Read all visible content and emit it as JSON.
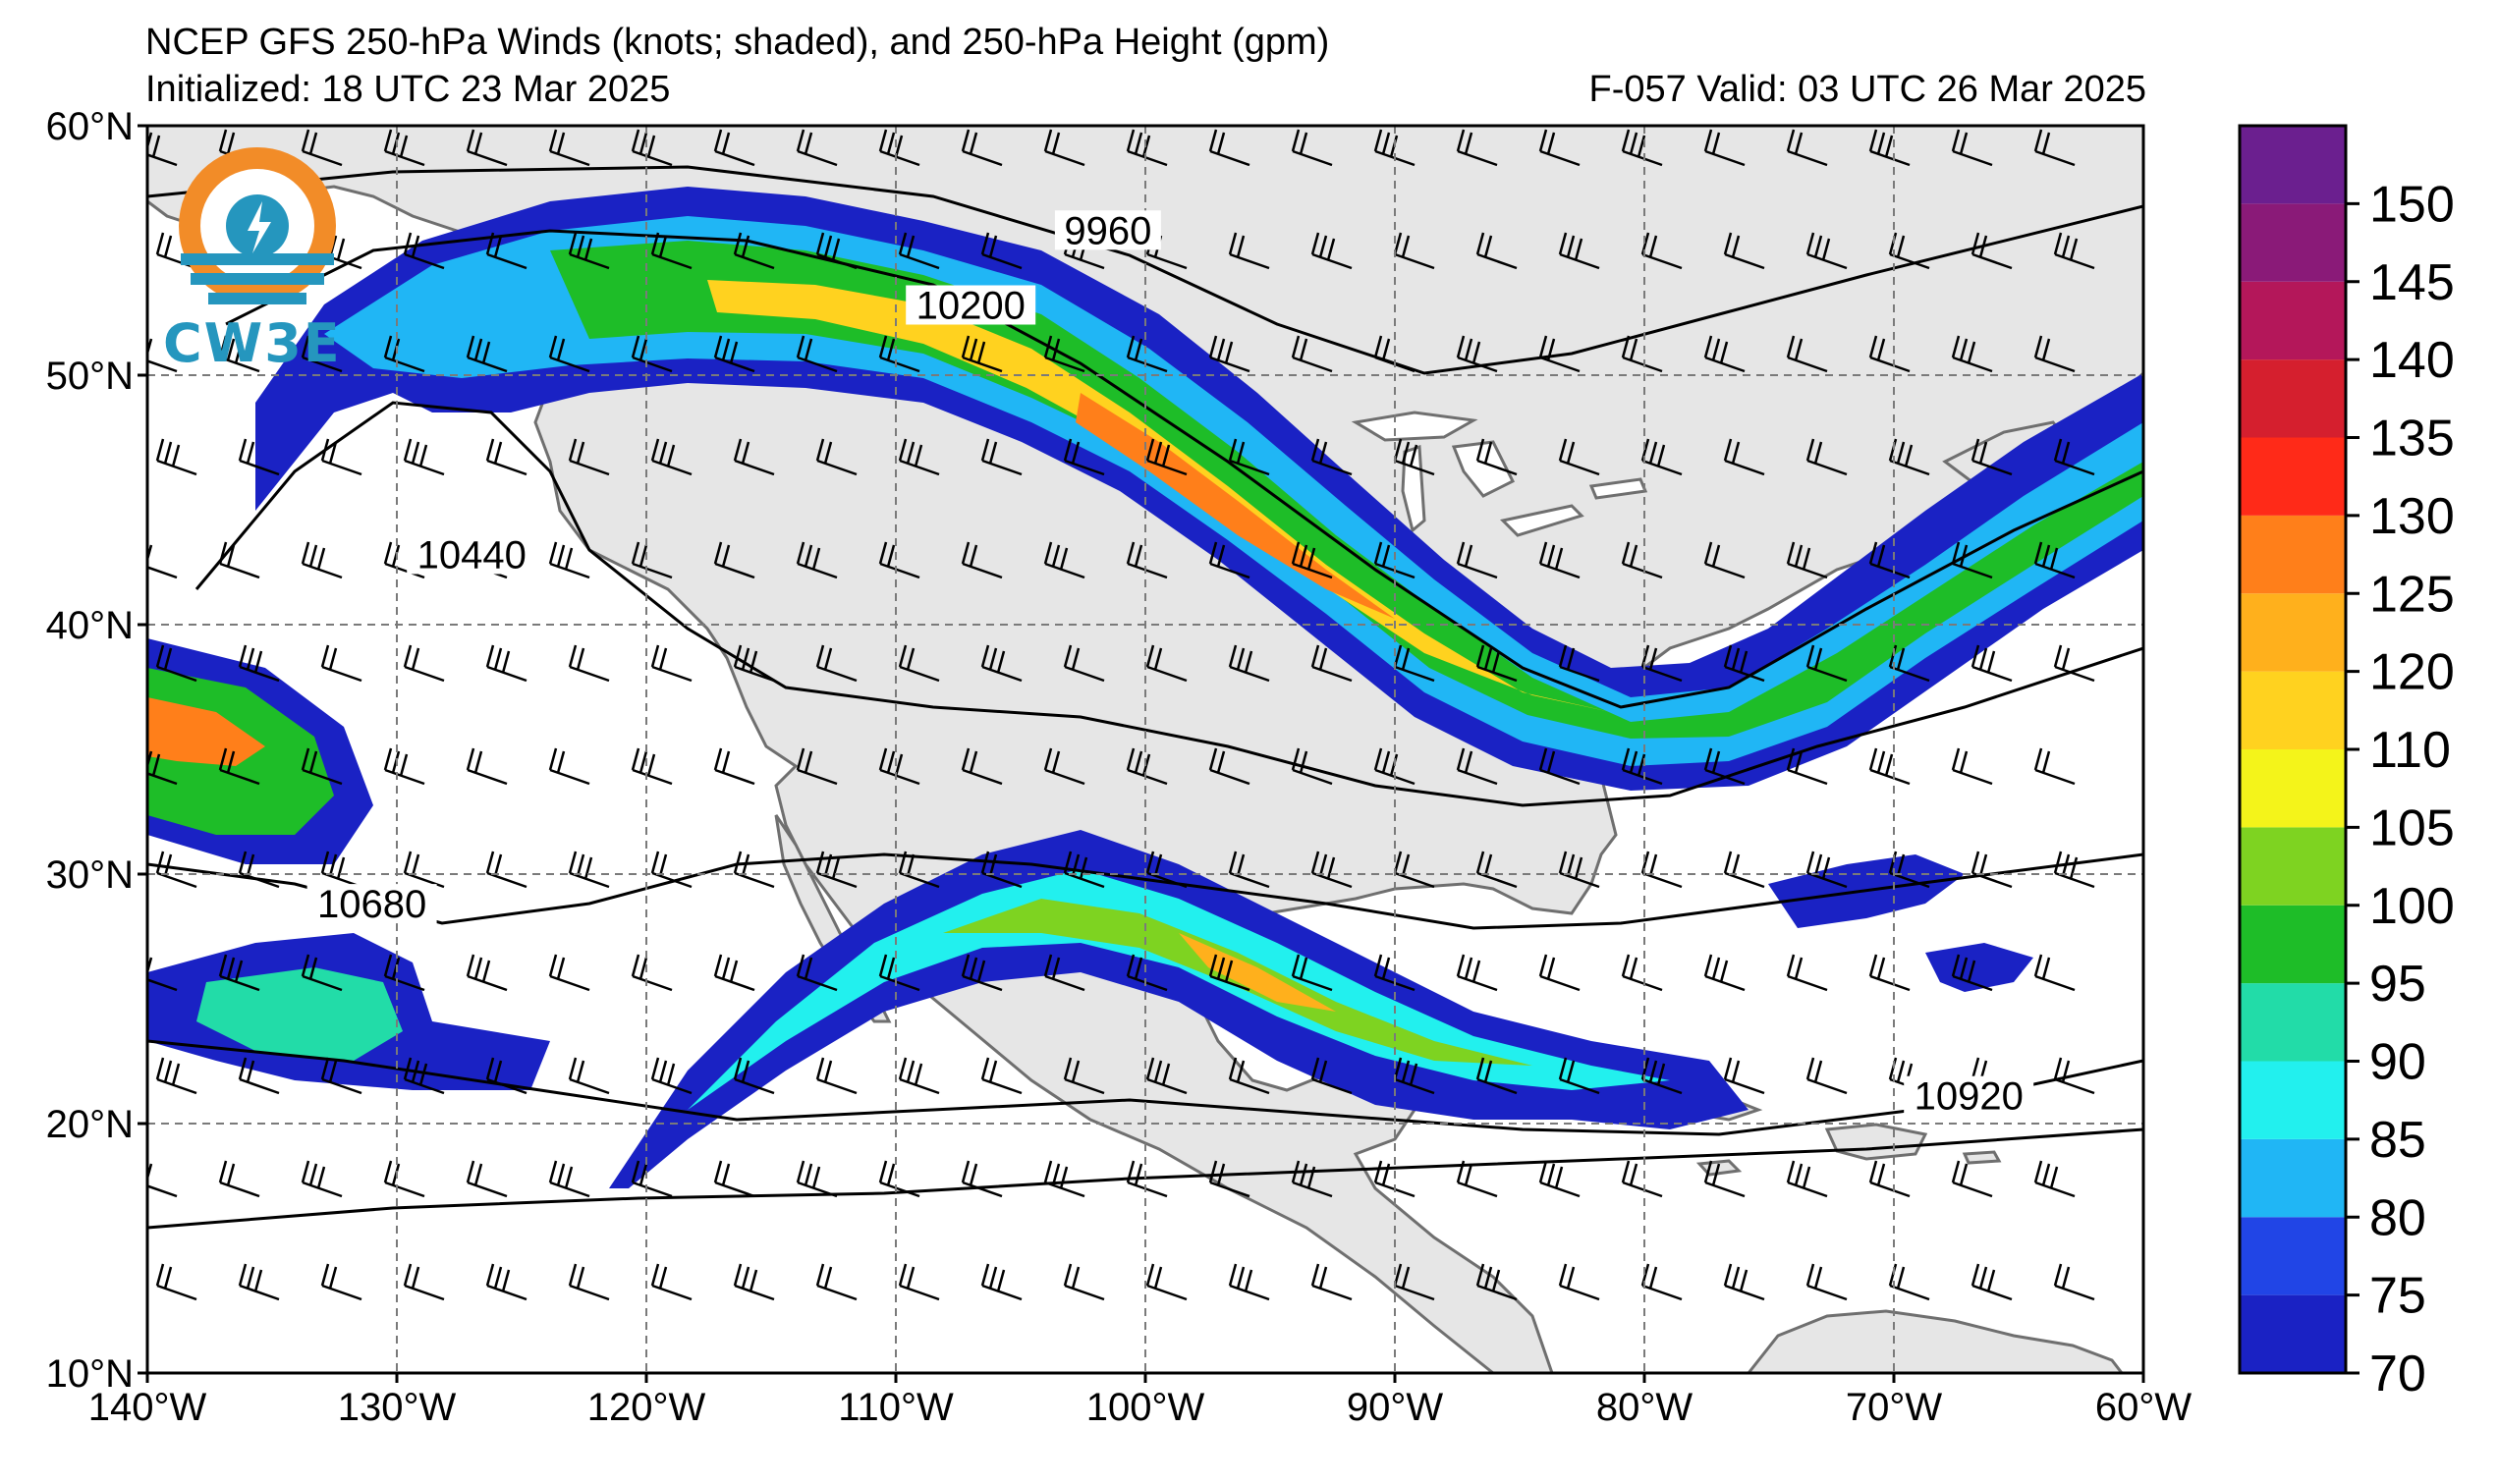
{
  "header": {
    "title": "NCEP GFS 250-hPa Winds (knots; shaded), and 250-hPa Height (gpm)",
    "initialized": "Initialized: 18 UTC 23 Mar 2025",
    "valid": "F-057  Valid: 03 UTC 26 Mar 2025"
  },
  "logo": {
    "text": "CW3E",
    "icon": "cw3e-logo-icon",
    "color": "#2596be",
    "ring_color": "#f28c28"
  },
  "map": {
    "lon_range": [
      -140,
      -60
    ],
    "lat_range": [
      10,
      60
    ],
    "lon_ticks": [
      {
        "value": -140,
        "label": "140°W"
      },
      {
        "value": -130,
        "label": "130°W"
      },
      {
        "value": -120,
        "label": "120°W"
      },
      {
        "value": -110,
        "label": "110°W"
      },
      {
        "value": -100,
        "label": "100°W"
      },
      {
        "value": -90,
        "label": "90°W"
      },
      {
        "value": -80,
        "label": "80°W"
      },
      {
        "value": -70,
        "label": "70°W"
      },
      {
        "value": -60,
        "label": "60°W"
      }
    ],
    "lat_ticks": [
      {
        "value": 10,
        "label": "10°N"
      },
      {
        "value": 20,
        "label": "20°N"
      },
      {
        "value": 30,
        "label": "30°N"
      },
      {
        "value": 40,
        "label": "40°N"
      },
      {
        "value": 50,
        "label": "50°N"
      },
      {
        "value": 60,
        "label": "60°N"
      }
    ],
    "grid": "dashed",
    "land_color": "#e6e6e6",
    "ocean_color": "#ffffff"
  },
  "contours": [
    {
      "label": "9960",
      "label_lon": -101.5,
      "label_lat": 55.5
    },
    {
      "label": "10200",
      "label_lon": -107,
      "label_lat": 52.5
    },
    {
      "label": "10440",
      "label_lon": -127,
      "label_lat": 42.5
    },
    {
      "label": "10680",
      "label_lon": -131,
      "label_lat": 28.5
    },
    {
      "label": "10920",
      "label_lon": -67,
      "label_lat": 20.8
    }
  ],
  "colorbar": {
    "levels": [
      70,
      75,
      80,
      85,
      90,
      95,
      100,
      105,
      110,
      120,
      125,
      130,
      135,
      140,
      145,
      150,
      155
    ],
    "labels": [
      "70",
      "75",
      "80",
      "85",
      "90",
      "95",
      "100",
      "105",
      "110",
      "120",
      "125",
      "130",
      "135",
      "140",
      "145",
      "150"
    ],
    "colors": [
      "#1a22c4",
      "#2145e6",
      "#20b6f5",
      "#22f0ee",
      "#22dca8",
      "#1ebd28",
      "#7ed321",
      "#f4f41a",
      "#ffd21f",
      "#ffb01c",
      "#ff7f1a",
      "#ff2a18",
      "#d51f2e",
      "#b4175a",
      "#8a1a78",
      "#6b1f8f"
    ]
  }
}
